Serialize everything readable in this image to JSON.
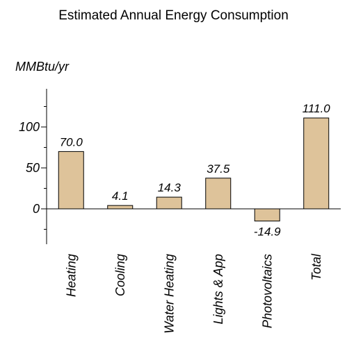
{
  "chart_data": {
    "type": "bar",
    "title": "Estimated Annual Energy Consumption",
    "ylabel": "MMBtu/yr",
    "xlabel": "",
    "categories": [
      "Heating",
      "Cooling",
      "Water Heating",
      "Lights & App",
      "Photovoltaics",
      "Total"
    ],
    "values": [
      70.0,
      4.1,
      14.3,
      37.5,
      -14.9,
      111.0
    ],
    "data_labels": [
      "70.0",
      "4.1",
      "14.3",
      "37.5",
      "-14.9",
      "111.0"
    ],
    "ylim": [
      -40,
      140
    ],
    "yticks_labeled": [
      0,
      50,
      100
    ],
    "yticks_all": [
      -25,
      0,
      25,
      50,
      75,
      100,
      125
    ],
    "bar_color": "#deC39a",
    "grid": false,
    "legend": "none"
  }
}
